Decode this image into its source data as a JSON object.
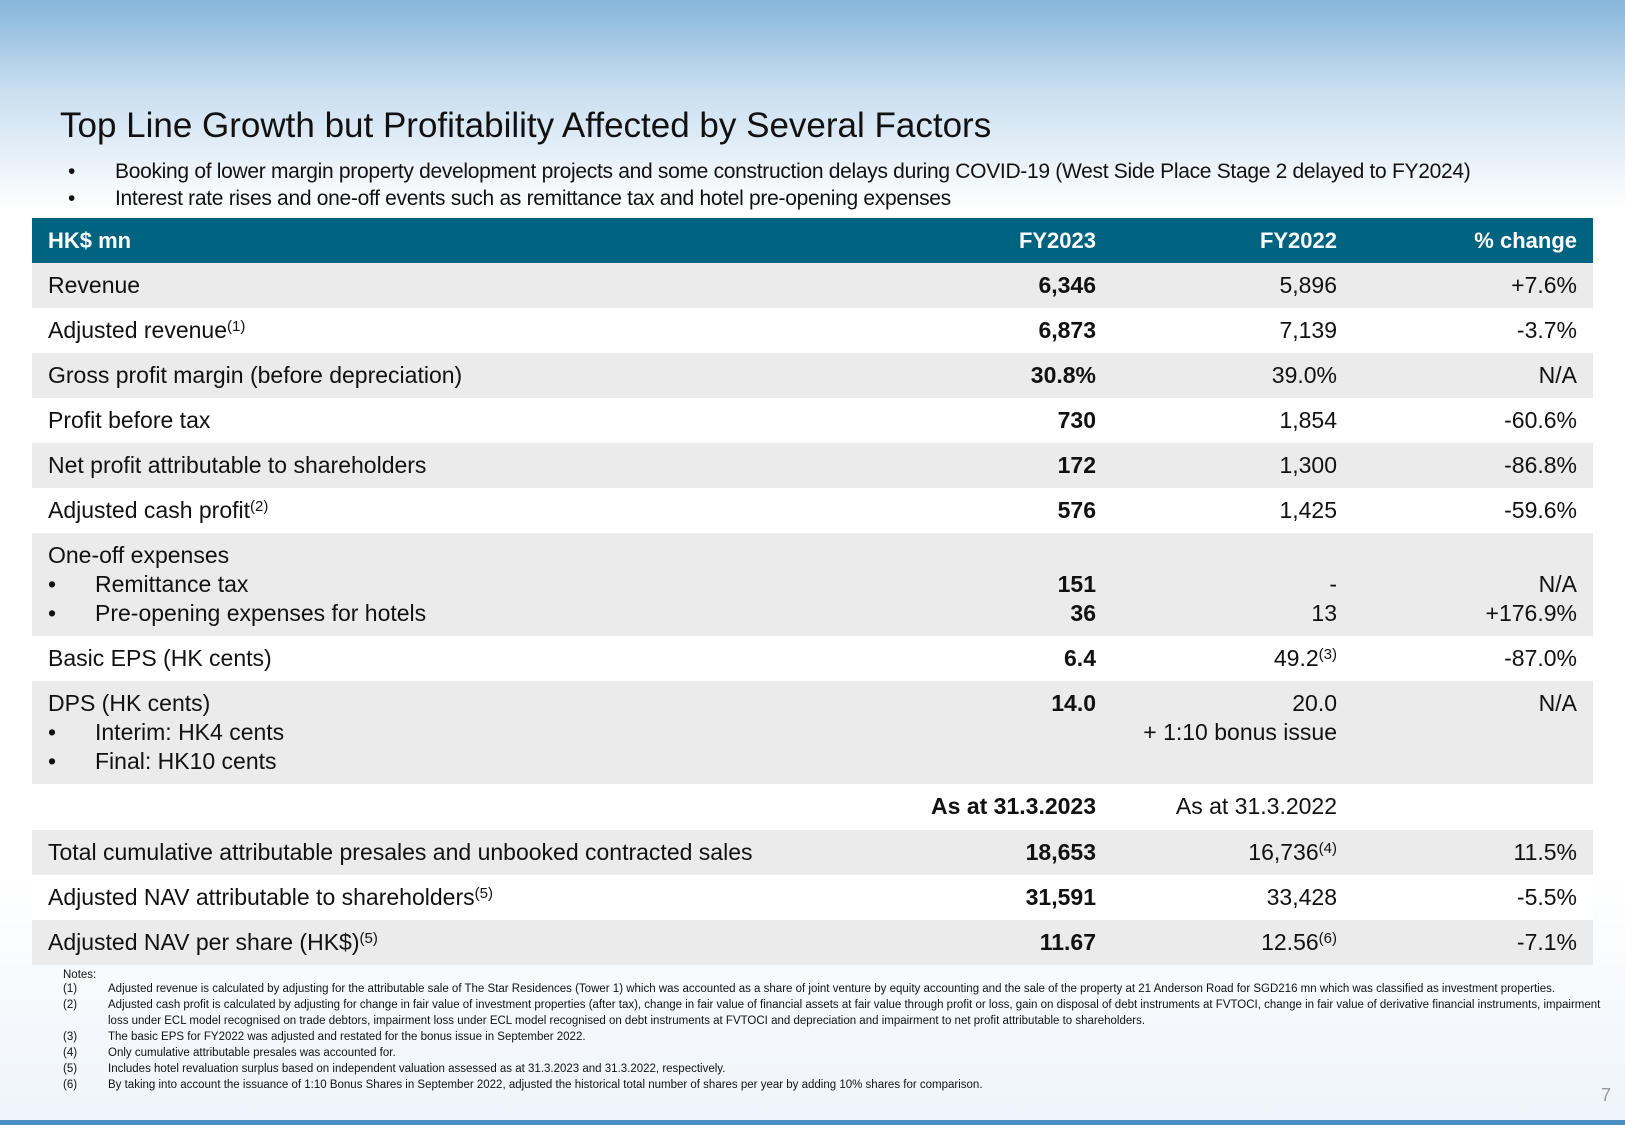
{
  "title": "Top Line Growth but Profitability Affected by Several Factors",
  "bullets": [
    "Booking of lower margin property development projects and some construction delays during COVID-19 (West Side Place Stage 2 delayed to FY2024)",
    "Interest rate rises and one-off events such as remittance tax and hotel pre-opening expenses"
  ],
  "table": {
    "header": [
      "HK$ mn",
      "FY2023",
      "FY2022",
      "% change"
    ],
    "rows": [
      {
        "label": "Revenue",
        "fy2023": [
          "6,346"
        ],
        "fy2022": [
          "5,896"
        ],
        "change": [
          "+7.6%"
        ]
      },
      {
        "label": "Adjusted revenue",
        "sup": "(1)",
        "fy2023": [
          "6,873"
        ],
        "fy2022": [
          "7,139"
        ],
        "change": [
          "-3.7%"
        ]
      },
      {
        "label": "Gross profit margin (before depreciation)",
        "fy2023": [
          "30.8%"
        ],
        "fy2022": [
          "39.0%"
        ],
        "change": [
          "N/A"
        ]
      },
      {
        "label": "Profit before tax",
        "fy2023": [
          "730"
        ],
        "fy2022": [
          "1,854"
        ],
        "change": [
          "-60.6%"
        ]
      },
      {
        "label": "Net profit attributable to shareholders",
        "fy2023": [
          "172"
        ],
        "fy2022": [
          "1,300"
        ],
        "change": [
          "-86.8%"
        ]
      },
      {
        "label": "Adjusted cash profit",
        "sup": "(2)",
        "fy2023": [
          "576"
        ],
        "fy2022": [
          "1,425"
        ],
        "change": [
          "-59.6%"
        ]
      },
      {
        "label": "One-off expenses",
        "items": [
          "Remittance tax",
          "Pre-opening expenses for hotels"
        ],
        "fy2023": [
          "151",
          "36"
        ],
        "fy2022": [
          "-",
          "13"
        ],
        "change": [
          "N/A",
          "+176.9%"
        ]
      },
      {
        "label": "Basic EPS (HK cents)",
        "fy2023": [
          "6.4"
        ],
        "fy2022": [
          {
            "text": "49.2",
            "sup": "(3)"
          }
        ],
        "change": [
          "-87.0%"
        ]
      },
      {
        "label": "DPS (HK cents)",
        "items": [
          "Interim: HK4 cents",
          "Final: HK10 cents"
        ],
        "fy2023": [
          "14.0"
        ],
        "fy2022": [
          "20.0",
          "+ 1:10 bonus issue"
        ],
        "change": [
          "N/A"
        ]
      },
      {
        "fy2023": [
          "As at 31.3.2023"
        ],
        "fy2022": [
          "As at 31.3.2022"
        ]
      },
      {
        "label": "Total cumulative attributable presales and unbooked contracted sales",
        "fy2023": [
          "18,653"
        ],
        "fy2022": [
          {
            "text": "16,736",
            "sup": "(4)"
          }
        ],
        "change": [
          "11.5%"
        ]
      },
      {
        "label": "Adjusted NAV attributable to shareholders",
        "sup": "(5)",
        "fy2023": [
          "31,591"
        ],
        "fy2022": [
          "33,428"
        ],
        "change": [
          "-5.5%"
        ]
      },
      {
        "label": "Adjusted NAV per share (HK$)",
        "sup": "(5)",
        "fy2023": [
          "11.67"
        ],
        "fy2022": [
          {
            "text": "12.56",
            "sup": "(6)"
          }
        ],
        "change": [
          "-7.1%"
        ]
      }
    ]
  },
  "notes": {
    "heading": "Notes:",
    "items": [
      {
        "num": "(1)",
        "text": "Adjusted revenue is calculated by adjusting for the attributable sale of The Star Residences (Tower 1) which was accounted as a share of joint venture by equity accounting and the sale of the property at 21 Anderson Road for SGD216 mn which was classified as investment properties."
      },
      {
        "num": "(2)",
        "text": "Adjusted cash profit is calculated by adjusting for change in fair value of investment properties (after tax), change in fair value of financial assets at fair value through profit or loss, gain on disposal of debt instruments at FVTOCI, change in fair value of derivative financial instruments, impairment loss under ECL model recognised on trade debtors, impairment loss under ECL model recognised on debt instruments at FVTOCI and depreciation and impairment to net profit attributable to shareholders."
      },
      {
        "num": "(3)",
        "text": "The basic EPS for FY2022 was adjusted and restated for the bonus issue in September 2022."
      },
      {
        "num": "(4)",
        "text": "Only cumulative attributable presales was accounted for."
      },
      {
        "num": "(5)",
        "text": "Includes hotel revaluation surplus based on independent valuation assessed as at 31.3.2023 and 31.3.2022, respectively."
      },
      {
        "num": "(6)",
        "text": "By taking into account the issuance of 1:10 Bonus Shares in September 2022, adjusted the historical total number of shares per year by adding 10% shares for comparison."
      }
    ]
  },
  "page_number": "7"
}
